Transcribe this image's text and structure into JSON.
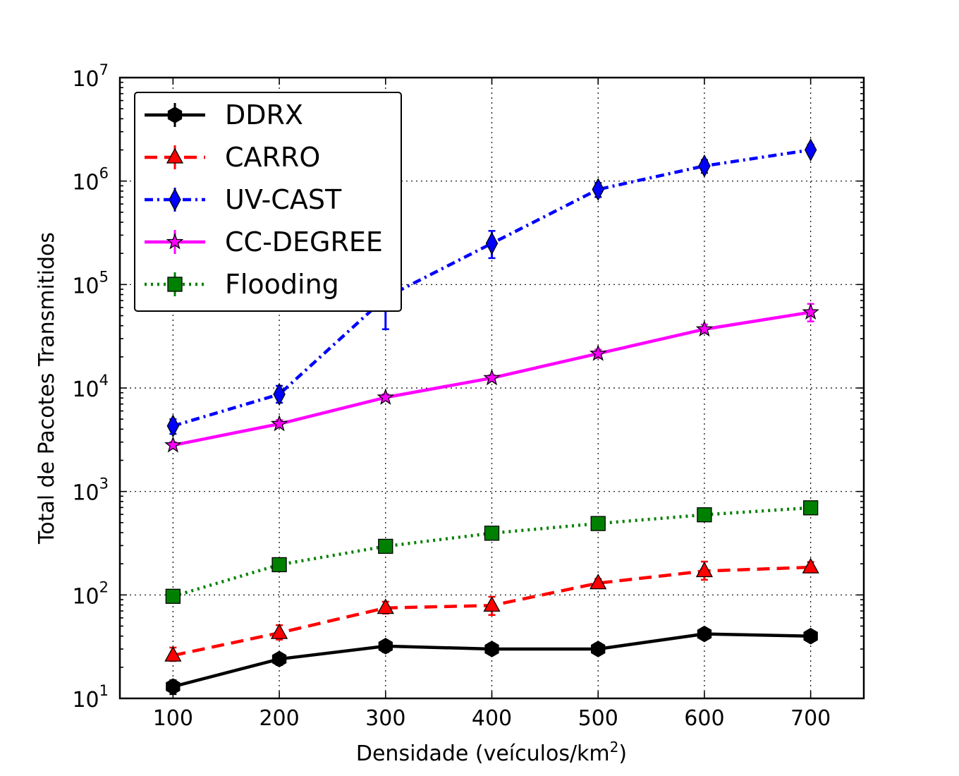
{
  "chart_data": {
    "type": "line",
    "xlabel": "Densidade (veículos/km",
    "xlabel_sup": "2",
    "xlabel_close": ")",
    "ylabel": "Total de Pacotes Transmitidos",
    "x": [
      100,
      200,
      300,
      400,
      500,
      600,
      700
    ],
    "x_ticks": [
      "100",
      "200",
      "300",
      "400",
      "500",
      "600",
      "700"
    ],
    "xlim": [
      50,
      750
    ],
    "ylim": [
      10,
      10000000
    ],
    "y_scale": "log",
    "y_ticks": [
      {
        "base": "10",
        "exp": "1"
      },
      {
        "base": "10",
        "exp": "2"
      },
      {
        "base": "10",
        "exp": "3"
      },
      {
        "base": "10",
        "exp": "4"
      },
      {
        "base": "10",
        "exp": "5"
      },
      {
        "base": "10",
        "exp": "6"
      },
      {
        "base": "10",
        "exp": "7"
      }
    ],
    "grid": true,
    "legend_position": "top-left",
    "series": [
      {
        "name": "DDRX",
        "color": "#000000",
        "marker": "hexagon",
        "line_style": "solid",
        "values": [
          13,
          24,
          32,
          30,
          30,
          42,
          40
        ],
        "error_low": [
          11,
          21,
          28,
          27,
          27,
          39,
          36
        ],
        "error_high": [
          15,
          27,
          36,
          34,
          34,
          46,
          45
        ]
      },
      {
        "name": "CARRO",
        "color": "#ff0000",
        "marker": "triangle",
        "line_style": "dashed",
        "values": [
          26,
          43,
          75,
          79,
          130,
          170,
          185
        ],
        "error_low": [
          23,
          37,
          66,
          64,
          118,
          140,
          165
        ],
        "error_high": [
          31,
          51,
          86,
          96,
          143,
          210,
          208
        ]
      },
      {
        "name": "UV-CAST",
        "color": "#0000ff",
        "marker": "diamond",
        "line_style": "dashdot",
        "values": [
          4300,
          8700,
          75000,
          250000,
          830000,
          1400000,
          2000000
        ],
        "error_low": [
          3600,
          7200,
          37000,
          180000,
          700000,
          1200000,
          1800000
        ],
        "error_high": [
          5000,
          10500,
          110000,
          330000,
          960000,
          1600000,
          2250000
        ]
      },
      {
        "name": "CC-DEGREE",
        "color": "#ff00ff",
        "marker": "star",
        "line_style": "solid",
        "values": [
          2800,
          4500,
          8100,
          12500,
          21500,
          37000,
          54000
        ],
        "error_low": [
          2600,
          4200,
          7600,
          11800,
          19500,
          34000,
          44000
        ],
        "error_high": [
          3000,
          4900,
          8700,
          13300,
          23500,
          41000,
          65000
        ]
      },
      {
        "name": "Flooding",
        "color": "#008000",
        "marker": "square",
        "line_style": "dotted",
        "values": [
          97,
          196,
          295,
          395,
          490,
          595,
          695
        ],
        "error_low": [
          94,
          193,
          291,
          390,
          485,
          589,
          688
        ],
        "error_high": [
          100,
          199,
          299,
          400,
          495,
          601,
          702
        ]
      }
    ]
  }
}
